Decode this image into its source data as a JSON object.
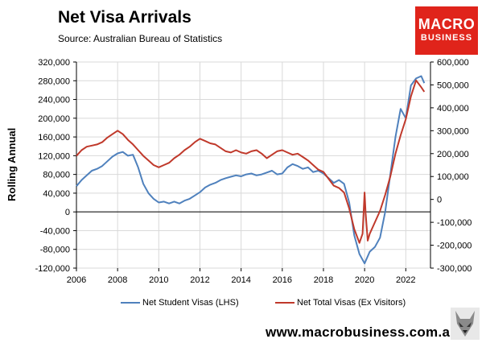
{
  "header": {
    "title": "Net Visa Arrivals",
    "subtitle": "Source: Australian Bureau of Statistics"
  },
  "logo": {
    "line1": "MACRO",
    "line2": "BUSINESS",
    "color": "#e0241b"
  },
  "footer": {
    "url": "www.macrobusiness.com.au",
    "mascot_icon": "wolf-icon"
  },
  "chart_data": {
    "type": "line",
    "title": "Net Visa Arrivals",
    "ylabel": "Rolling Annual",
    "xlim": [
      2006,
      2023.2
    ],
    "x_ticks": [
      "2006",
      "2008",
      "2010",
      "2012",
      "2014",
      "2016",
      "2018",
      "2020",
      "2022"
    ],
    "y_left": {
      "lim": [
        -120000,
        320000
      ],
      "ticks": [
        "320,000",
        "280,000",
        "240,000",
        "200,000",
        "160,000",
        "120,000",
        "80,000",
        "40,000",
        "0",
        "-40,000",
        "-80,000",
        "-120,000"
      ]
    },
    "y_right": {
      "lim": [
        -300000,
        600000
      ],
      "ticks": [
        "600,000",
        "500,000",
        "400,000",
        "300,000",
        "200,000",
        "100,000",
        "0",
        "-100,000",
        "-200,000",
        "-300,000"
      ]
    },
    "grid": true,
    "legend_position": "bottom",
    "series": [
      {
        "name": "Net Student Visas (LHS)",
        "axis": "left",
        "color": "#4f81bd",
        "x": [
          2006.0,
          2006.25,
          2006.5,
          2006.75,
          2007.0,
          2007.25,
          2007.5,
          2007.75,
          2008.0,
          2008.25,
          2008.5,
          2008.75,
          2009.0,
          2009.25,
          2009.5,
          2009.75,
          2010.0,
          2010.25,
          2010.5,
          2010.75,
          2011.0,
          2011.25,
          2011.5,
          2011.75,
          2012.0,
          2012.25,
          2012.5,
          2012.75,
          2013.0,
          2013.25,
          2013.5,
          2013.75,
          2014.0,
          2014.25,
          2014.5,
          2014.75,
          2015.0,
          2015.25,
          2015.5,
          2015.75,
          2016.0,
          2016.25,
          2016.5,
          2016.75,
          2017.0,
          2017.25,
          2017.5,
          2017.75,
          2018.0,
          2018.25,
          2018.5,
          2018.75,
          2019.0,
          2019.25,
          2019.5,
          2019.75,
          2020.0,
          2020.25,
          2020.5,
          2020.75,
          2021.0,
          2021.25,
          2021.5,
          2021.75,
          2022.0,
          2022.25,
          2022.5,
          2022.75,
          2022.9
        ],
        "y": [
          55000,
          68000,
          78000,
          88000,
          92000,
          98000,
          108000,
          118000,
          125000,
          128000,
          120000,
          122000,
          95000,
          60000,
          40000,
          28000,
          20000,
          22000,
          18000,
          22000,
          18000,
          24000,
          28000,
          35000,
          42000,
          52000,
          58000,
          62000,
          68000,
          72000,
          75000,
          78000,
          76000,
          80000,
          82000,
          78000,
          80000,
          84000,
          88000,
          80000,
          82000,
          95000,
          102000,
          98000,
          92000,
          95000,
          85000,
          88000,
          82000,
          72000,
          62000,
          68000,
          60000,
          20000,
          -50000,
          -90000,
          -110000,
          -85000,
          -75000,
          -55000,
          0,
          80000,
          160000,
          220000,
          200000,
          270000,
          285000,
          290000,
          275000
        ]
      },
      {
        "name": "Net Total Visas (Ex Visitors)",
        "axis": "right",
        "color": "#c0392b",
        "x": [
          2006.0,
          2006.25,
          2006.5,
          2006.75,
          2007.0,
          2007.25,
          2007.5,
          2007.75,
          2008.0,
          2008.25,
          2008.5,
          2008.75,
          2009.0,
          2009.25,
          2009.5,
          2009.75,
          2010.0,
          2010.25,
          2010.5,
          2010.75,
          2011.0,
          2011.25,
          2011.5,
          2011.75,
          2012.0,
          2012.25,
          2012.5,
          2012.75,
          2013.0,
          2013.25,
          2013.5,
          2013.75,
          2014.0,
          2014.25,
          2014.5,
          2014.75,
          2015.0,
          2015.25,
          2015.5,
          2015.75,
          2016.0,
          2016.25,
          2016.5,
          2016.75,
          2017.0,
          2017.25,
          2017.5,
          2017.75,
          2018.0,
          2018.25,
          2018.5,
          2018.75,
          2019.0,
          2019.25,
          2019.5,
          2019.75,
          2019.9,
          2020.0,
          2020.05,
          2020.15,
          2020.25,
          2020.5,
          2020.75,
          2021.0,
          2021.25,
          2021.5,
          2021.75,
          2022.0,
          2022.25,
          2022.5,
          2022.75,
          2022.9
        ],
        "y": [
          190000,
          215000,
          230000,
          235000,
          240000,
          250000,
          270000,
          285000,
          300000,
          285000,
          260000,
          240000,
          215000,
          190000,
          170000,
          150000,
          140000,
          150000,
          160000,
          180000,
          195000,
          215000,
          230000,
          250000,
          265000,
          255000,
          245000,
          240000,
          225000,
          210000,
          205000,
          215000,
          205000,
          200000,
          210000,
          215000,
          200000,
          180000,
          195000,
          210000,
          215000,
          205000,
          195000,
          200000,
          185000,
          170000,
          150000,
          130000,
          120000,
          90000,
          60000,
          50000,
          30000,
          -40000,
          -130000,
          -190000,
          -150000,
          30000,
          -60000,
          -180000,
          -150000,
          -100000,
          -50000,
          20000,
          100000,
          200000,
          280000,
          350000,
          450000,
          520000,
          490000,
          470000
        ]
      }
    ]
  }
}
